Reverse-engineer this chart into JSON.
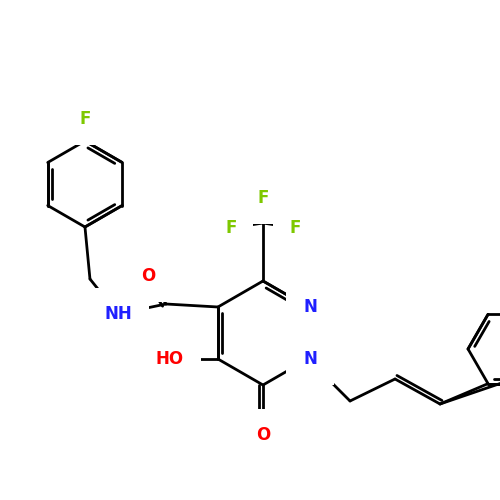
{
  "background_color": "#ffffff",
  "bond_color": "#000000",
  "atom_colors": {
    "F": "#7ec800",
    "N": "#2020ff",
    "O": "#ff0000",
    "HO": "#ff0000",
    "NH": "#2020ff",
    "C": "#000000"
  },
  "figsize": [
    5.0,
    5.0
  ],
  "dpi": 100
}
